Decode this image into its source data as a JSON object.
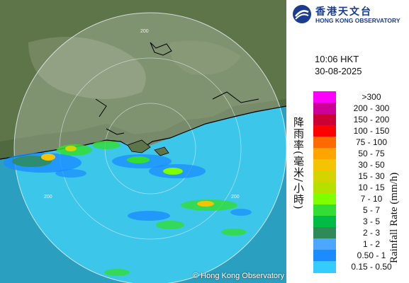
{
  "logo": {
    "chinese_name": "香港天文台",
    "english_name": "HONG KONG OBSERVATORY"
  },
  "timestamp": {
    "time": "10:06 HKT",
    "date": "30-08-2025"
  },
  "map": {
    "copyright": "© Hong Kong Observatory",
    "range_ring_labels": [
      "200",
      "200",
      "200"
    ],
    "colors": {
      "sea": "#34c3e8",
      "land_dark": "#4e6a3c",
      "land_light": "#8a9a78",
      "coastline": "#000000"
    }
  },
  "legend": {
    "title_en": "Rainfall Rate (mm/h)",
    "title_cn": "降雨率(毫米/小時)",
    "bins": [
      {
        "label": ">300",
        "color": "#ff00ff"
      },
      {
        "label": "200 - 300",
        "color": "#cc0099"
      },
      {
        "label": "150 - 200",
        "color": "#cc0033"
      },
      {
        "label": "100 - 150",
        "color": "#ff0000"
      },
      {
        "label": "75 - 100",
        "color": "#ff6a00"
      },
      {
        "label": "50 - 75",
        "color": "#ffa500"
      },
      {
        "label": "30 - 50",
        "color": "#f5c400"
      },
      {
        "label": "15 - 30",
        "color": "#d4d400"
      },
      {
        "label": "10 - 15",
        "color": "#b5e000"
      },
      {
        "label": "7 - 10",
        "color": "#80ff00"
      },
      {
        "label": "5 - 7",
        "color": "#33dd33"
      },
      {
        "label": "3 - 5",
        "color": "#00bb44"
      },
      {
        "label": "2 - 3",
        "color": "#2e8b57"
      },
      {
        "label": "1 - 2",
        "color": "#4da6ff"
      },
      {
        "label": "0.50 - 1",
        "color": "#1a8cff"
      },
      {
        "label": "0.15 - 0.50",
        "color": "#33ccff"
      }
    ]
  }
}
